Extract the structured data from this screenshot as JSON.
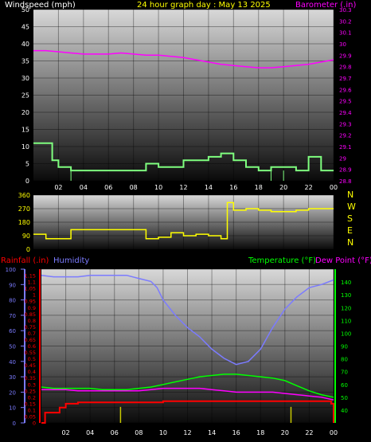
{
  "header": {
    "windspeed_label": "Windspeed (mph)",
    "title": "24 hour graph day : May 13 2025",
    "barometer_label": "Barometer (.in)"
  },
  "colors": {
    "windspeed": "#ffffff",
    "title": "#ffff00",
    "barometer": "#ff00ff",
    "wind_series": "#7fff7f",
    "direction_series": "#ffff00",
    "rainfall": "#ff0000",
    "humidity": "#7b7bff",
    "temperature": "#00ff00",
    "dewpoint": "#ff00ff",
    "solar_ticks": "#c8c800"
  },
  "chart_data": [
    {
      "type": "line",
      "id": "wind-barometer",
      "title": "24 hour graph day : May 13 2025",
      "x_ticks": [
        "02",
        "04",
        "06",
        "08",
        "10",
        "12",
        "14",
        "16",
        "18",
        "20",
        "22",
        "00"
      ],
      "x_range": [
        0,
        24
      ],
      "left_axis": {
        "label": "Windspeed (mph)",
        "ylim": [
          0,
          50
        ],
        "ticks": [
          0,
          5,
          10,
          15,
          20,
          25,
          30,
          35,
          40,
          45,
          50
        ]
      },
      "right_axis": {
        "label": "Barometer (.in)",
        "ylim": [
          28.8,
          30.3
        ],
        "ticks": [
          "28.8",
          "28.9",
          "29",
          "29.1",
          "29.2",
          "29.3",
          "29.4",
          "29.5",
          "29.6",
          "29.7",
          "29.8",
          "29.9",
          "30",
          "30.1",
          "30.2",
          "30.3"
        ]
      },
      "series": [
        {
          "name": "Windspeed (mph)",
          "axis": "left",
          "step": true,
          "x": [
            0,
            1,
            1.5,
            2,
            3,
            4,
            5,
            6,
            7,
            8,
            9,
            10,
            11,
            12,
            13,
            14,
            15,
            16,
            17,
            18,
            19,
            20,
            21,
            22,
            23,
            24
          ],
          "y": [
            11,
            11,
            6,
            4,
            3,
            3,
            3,
            3,
            3,
            3,
            5,
            4,
            4,
            6,
            6,
            7,
            8,
            6,
            4,
            3,
            4,
            4,
            3,
            7,
            3,
            3
          ]
        },
        {
          "name": "Barometer (.in)",
          "axis": "right",
          "x": [
            0,
            1,
            2,
            3,
            4,
            5,
            6,
            7,
            8,
            9,
            10,
            11,
            12,
            13,
            14,
            15,
            16,
            17,
            18,
            19,
            20,
            21,
            22,
            23,
            24
          ],
          "y": [
            29.94,
            29.94,
            29.93,
            29.92,
            29.91,
            29.91,
            29.91,
            29.92,
            29.91,
            29.9,
            29.9,
            29.89,
            29.88,
            29.86,
            29.84,
            29.82,
            29.81,
            29.8,
            29.79,
            29.79,
            29.8,
            29.81,
            29.82,
            29.84,
            29.86
          ]
        }
      ]
    },
    {
      "type": "line",
      "id": "wind-direction",
      "x_range": [
        0,
        24
      ],
      "left_axis": {
        "ylim": [
          0,
          360
        ],
        "ticks": [
          0,
          90,
          180,
          270,
          360
        ]
      },
      "right_labels": [
        "N",
        "W",
        "S",
        "E",
        "N"
      ],
      "series": [
        {
          "name": "Wind direction",
          "step": true,
          "x": [
            0,
            1,
            2,
            3,
            4,
            5,
            6,
            7,
            8,
            9,
            10,
            11,
            12,
            13,
            14,
            15,
            15.5,
            16,
            17,
            18,
            19,
            20,
            21,
            22,
            23,
            24
          ],
          "y": [
            100,
            70,
            70,
            130,
            130,
            130,
            130,
            130,
            130,
            70,
            80,
            110,
            90,
            100,
            90,
            70,
            310,
            260,
            270,
            260,
            250,
            250,
            260,
            270,
            270,
            270
          ]
        }
      ]
    },
    {
      "type": "line",
      "id": "temp-humidity-rain",
      "x_ticks": [
        "02",
        "04",
        "06",
        "08",
        "10",
        "12",
        "14",
        "16",
        "18",
        "20",
        "22",
        "00"
      ],
      "x_range": [
        0,
        24
      ],
      "rain_axis": {
        "label": "Rainfall (.in)",
        "ylim": [
          0,
          1.2
        ],
        "ticks": [
          "0",
          "0.05",
          "0.1",
          "0.15",
          "0.2",
          "0.25",
          "0.3",
          "0.35",
          "0.4",
          "0.45",
          "0.5",
          "0.55",
          "0.6",
          "0.65",
          "0.7",
          "0.75",
          "0.8",
          "0.85",
          "0.9",
          "0.95",
          "1",
          "1.05",
          "1.1",
          "1.15"
        ]
      },
      "humidity_axis": {
        "label": "Humidity",
        "ylim": [
          0,
          100
        ],
        "ticks": [
          0,
          10,
          20,
          30,
          40,
          50,
          60,
          70,
          80,
          90,
          100
        ]
      },
      "temp_axis": {
        "label": "Temperature (°F)",
        "ylim": [
          30,
          150
        ],
        "ticks": [
          40,
          50,
          60,
          70,
          80,
          90,
          100,
          110,
          120,
          130,
          140
        ]
      },
      "dewpoint_label": "Dew Point (°F)",
      "series": [
        {
          "name": "Humidity",
          "axis": "humidity",
          "x": [
            0,
            1,
            2,
            3,
            4,
            5,
            6,
            7,
            8,
            9,
            9.5,
            10,
            11,
            12,
            13,
            14,
            15,
            16,
            17,
            18,
            19,
            20,
            21,
            22,
            23,
            24
          ],
          "y": [
            96,
            95,
            95,
            95,
            96,
            96,
            96,
            96,
            94,
            92,
            88,
            80,
            70,
            62,
            56,
            48,
            42,
            38,
            40,
            48,
            62,
            74,
            82,
            88,
            90,
            93
          ]
        },
        {
          "name": "Temperature (°F)",
          "axis": "temp",
          "x": [
            0,
            1,
            2,
            3,
            4,
            5,
            6,
            7,
            8,
            9,
            10,
            11,
            12,
            13,
            14,
            15,
            16,
            17,
            18,
            19,
            20,
            21,
            22,
            23,
            24
          ],
          "y": [
            58,
            57,
            57,
            57,
            57,
            56,
            56,
            56,
            57,
            58,
            60,
            62,
            64,
            66,
            67,
            68,
            68,
            67,
            66,
            65,
            63,
            59,
            55,
            52,
            50
          ]
        },
        {
          "name": "Dew Point (°F)",
          "axis": "temp",
          "x": [
            0,
            1,
            2,
            3,
            4,
            5,
            6,
            7,
            8,
            9,
            10,
            11,
            12,
            13,
            14,
            15,
            16,
            17,
            18,
            19,
            20,
            21,
            22,
            23,
            24
          ],
          "y": [
            56,
            56,
            56,
            55,
            55,
            55,
            55,
            55,
            55,
            56,
            57,
            57,
            57,
            57,
            56,
            55,
            54,
            54,
            54,
            54,
            53,
            52,
            51,
            50,
            48
          ]
        },
        {
          "name": "Rainfall (.in)",
          "axis": "rain",
          "step": true,
          "x": [
            0,
            0.3,
            1.5,
            2,
            3,
            4,
            6,
            8,
            10,
            12,
            14,
            16,
            18,
            20,
            22,
            23,
            23.8,
            24
          ],
          "y": [
            0,
            0.08,
            0.12,
            0.15,
            0.16,
            0.16,
            0.16,
            0.16,
            0.17,
            0.17,
            0.17,
            0.17,
            0.17,
            0.17,
            0.17,
            0.17,
            0.15,
            0
          ]
        },
        {
          "name": "Solar",
          "axis": "bars",
          "x": [
            6.5,
            20.5
          ],
          "y": [
            0.05,
            0.05
          ]
        }
      ]
    }
  ],
  "lower_header": {
    "rainfall_label": "Rainfall (.in)",
    "humidity_label": "Humidity",
    "temperature_label": "Temperature (°F)",
    "dewpoint_label": "Dew Point (°F)"
  }
}
